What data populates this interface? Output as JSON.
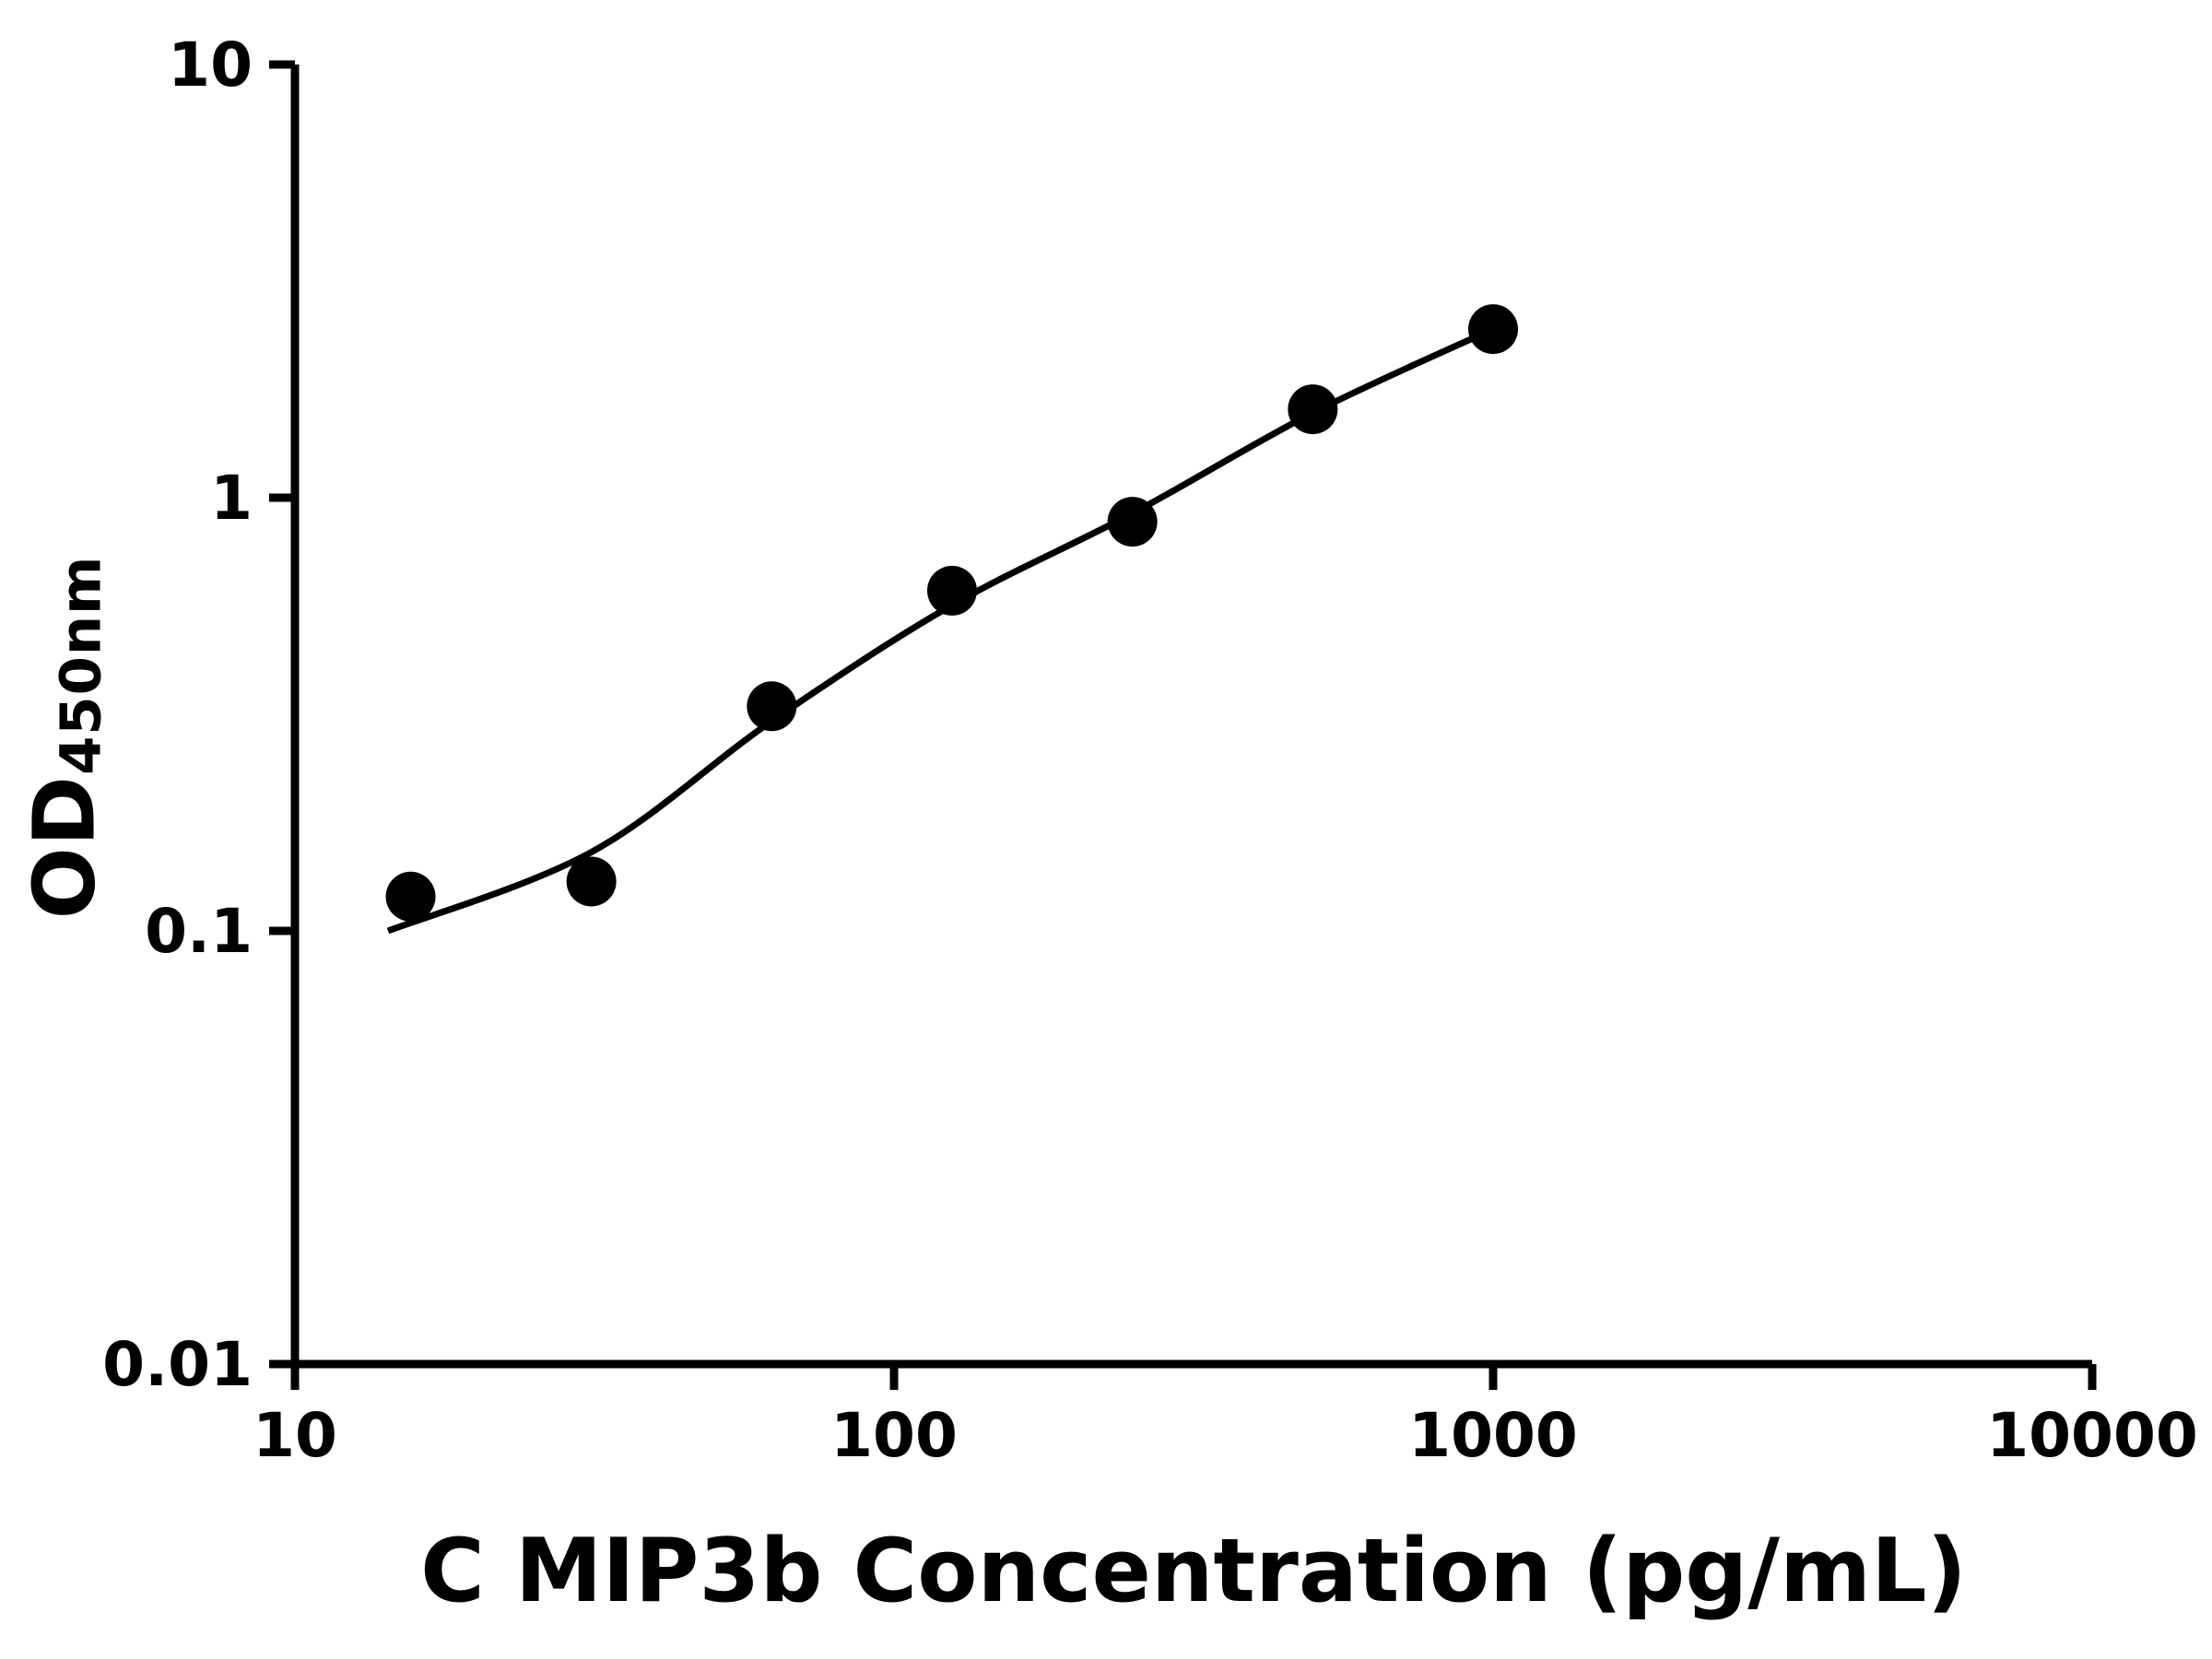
{
  "page": {
    "background_color": "#ffffff"
  },
  "chart_data": {
    "type": "scatter",
    "title": "",
    "xlabel": "C MIP3b Concentration (pg/mL)",
    "ylabel": "OD",
    "ylabel_subscript": "450nm",
    "x_scale": "log",
    "y_scale": "log",
    "xlim": [
      10,
      10000
    ],
    "ylim": [
      0.01,
      10
    ],
    "grid": false,
    "legend": false,
    "axis_color": "#000000",
    "marker_color": "#000000",
    "line_color": "#000000",
    "x_ticks": [
      {
        "value": 10,
        "label": "10"
      },
      {
        "value": 100,
        "label": "100"
      },
      {
        "value": 1000,
        "label": "1000"
      },
      {
        "value": 10000,
        "label": "10000"
      }
    ],
    "y_ticks": [
      {
        "value": 10,
        "label": "10"
      },
      {
        "value": 1,
        "label": "1"
      },
      {
        "value": 0.1,
        "label": "0.1"
      },
      {
        "value": 0.01,
        "label": "0.01"
      }
    ],
    "series": [
      {
        "name": "standard-curve-points",
        "marker": "circle",
        "color": "#000000",
        "x": [
          15.6,
          31.25,
          62.5,
          125,
          250,
          500,
          1000
        ],
        "y": [
          0.12,
          0.13,
          0.33,
          0.61,
          0.88,
          1.6,
          2.45
        ]
      }
    ],
    "trendline": {
      "name": "fitted-curve",
      "color": "#000000",
      "x": [
        14.3,
        31.25,
        62.5,
        125,
        250,
        500,
        1000
      ],
      "y": [
        0.1,
        0.152,
        0.305,
        0.565,
        0.92,
        1.57,
        2.45
      ]
    }
  }
}
